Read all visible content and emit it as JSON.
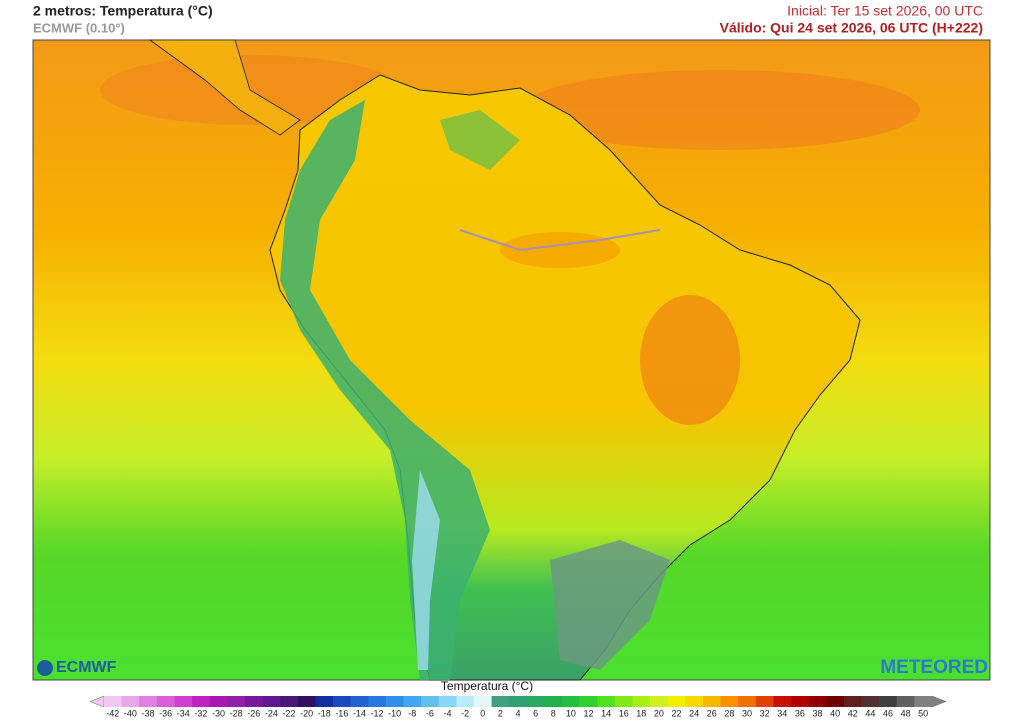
{
  "header": {
    "title": "2 metros: Temperatura (°C)",
    "model": "ECMWF (0.10°)",
    "initial": "Inicial: Ter 15 set 2026, 00 UTC",
    "valid": "Válido: Qui 24 set 2026, 06 UTC (H+222)"
  },
  "logos": {
    "left": "ECMWF",
    "right": "METEORED"
  },
  "legend": {
    "title": "Temperatura (°C)",
    "ticks": [
      -42,
      -40,
      -38,
      -36,
      -34,
      -32,
      -30,
      -28,
      -26,
      -24,
      -22,
      -20,
      -18,
      -16,
      -14,
      -12,
      -10,
      -8,
      -6,
      -4,
      -2,
      0,
      2,
      4,
      6,
      8,
      10,
      12,
      14,
      16,
      18,
      20,
      22,
      24,
      26,
      28,
      30,
      32,
      34,
      36,
      38,
      40,
      42,
      44,
      46,
      48,
      50
    ],
    "colors": [
      "#f0c8f0",
      "#e8a8e8",
      "#e080e0",
      "#d860d8",
      "#d040d0",
      "#c020c0",
      "#a818b0",
      "#9020a8",
      "#7818a0",
      "#601890",
      "#481878",
      "#301060",
      "#1030a0",
      "#1848c0",
      "#2060d0",
      "#2878e0",
      "#3090e8",
      "#40a8f0",
      "#60c0f0",
      "#88d8f8",
      "#b8ecfc",
      "#e0f8f8",
      "#40a080",
      "#30a070",
      "#28a860",
      "#20b050",
      "#20c040",
      "#30d030",
      "#50e020",
      "#80e818",
      "#a8f010",
      "#d0f020",
      "#f0f000",
      "#f8d800",
      "#f8b800",
      "#f89000",
      "#f07000",
      "#e04000",
      "#c81000",
      "#b00000",
      "#900000",
      "#700000",
      "#602020",
      "#503030",
      "#404040",
      "#606060",
      "#808080"
    ]
  }
}
